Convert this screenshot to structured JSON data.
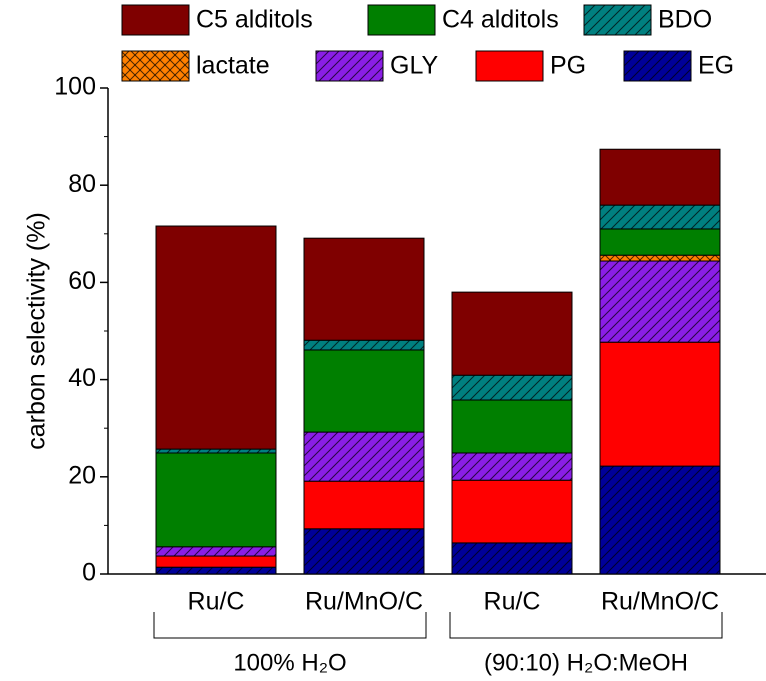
{
  "chart_data": {
    "type": "stacked_bar",
    "y_label": "carbon selectivity (%)",
    "categories": [
      "Ru/C",
      "Ru/MnO/C",
      "Ru/C",
      "Ru/MnO/C"
    ],
    "groups": [
      "100% H₂O",
      "(90:10) H₂O:MeOH"
    ],
    "ylim": [
      0,
      100
    ],
    "yticks": [
      0,
      20,
      40,
      60,
      80,
      100
    ],
    "series": [
      {
        "name": "EG",
        "color": "#000099",
        "hatch": "diagonal",
        "values": [
          1.4,
          9.3,
          6.4,
          22.2
        ]
      },
      {
        "name": "PG",
        "color": "#ff0000",
        "hatch": "none",
        "values": [
          2.3,
          9.8,
          12.9,
          25.5
        ]
      },
      {
        "name": "GLY",
        "color": "#8a1ee6",
        "hatch": "diagonal",
        "values": [
          1.9,
          10.1,
          5.6,
          16.7
        ]
      },
      {
        "name": "lactate",
        "color": "#ff8000",
        "hatch": "cross",
        "values": [
          0,
          0,
          0,
          1.2
        ]
      },
      {
        "name": "C4 alditols",
        "color": "#007f00",
        "hatch": "none",
        "values": [
          19.3,
          16.9,
          10.9,
          5.4
        ]
      },
      {
        "name": "BDO",
        "color": "#008080",
        "hatch": "diagonal",
        "values": [
          0.8,
          2.0,
          5.1,
          4.9
        ]
      },
      {
        "name": "C5 alditols",
        "color": "#7f0000",
        "hatch": "none",
        "values": [
          45.9,
          21.0,
          17.1,
          11.5
        ]
      }
    ]
  }
}
